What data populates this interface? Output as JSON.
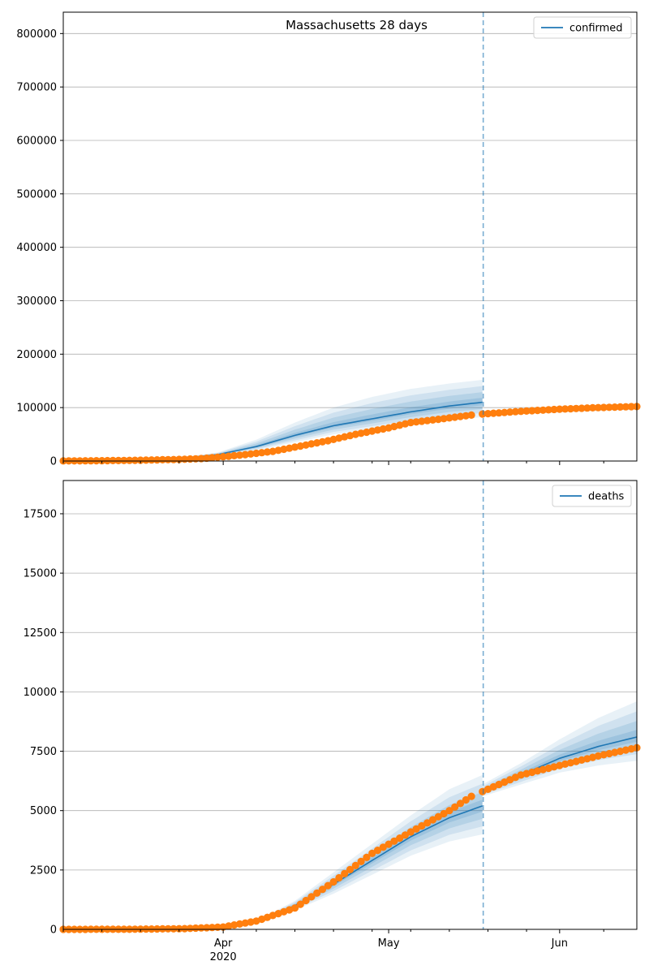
{
  "colors": {
    "model": "#1f77b4",
    "observed": "#ff7f0e",
    "grid": "#b0b0b0",
    "band": "#1f77b4"
  },
  "chart_data": [
    {
      "type": "line",
      "title": "Massachusetts 28 days",
      "legend": "confirmed",
      "legend_loc": "top-right",
      "ylim": [
        0,
        840000
      ],
      "yticks": [
        0,
        100000,
        200000,
        300000,
        400000,
        500000,
        600000,
        700000,
        800000
      ],
      "grid": true,
      "xaxis": {
        "type": "date",
        "range": [
          "2020-03-03",
          "2020-06-15"
        ],
        "major_ticks": [
          {
            "date": "2020-04-01",
            "label": "Apr",
            "sublabel": "2020"
          },
          {
            "date": "2020-05-01",
            "label": "May",
            "sublabel": ""
          },
          {
            "date": "2020-06-01",
            "label": "Jun",
            "sublabel": ""
          }
        ],
        "tick_labels_visible": false,
        "cutoff_date": "2020-05-18"
      },
      "model_fit": {
        "x": [
          "2020-03-03",
          "2020-03-10",
          "2020-03-17",
          "2020-03-24",
          "2020-03-31",
          "2020-04-07",
          "2020-04-14",
          "2020-04-21",
          "2020-04-28",
          "2020-05-05",
          "2020-05-12",
          "2020-05-18"
        ],
        "y": [
          200,
          500,
          1500,
          4500,
          12000,
          27000,
          48000,
          66000,
          79000,
          92000,
          103000,
          110000
        ],
        "lower": [
          200,
          500,
          1300,
          4000,
          10000,
          20000,
          35000,
          50000,
          60000,
          70000,
          78000,
          82000
        ],
        "upper": [
          200,
          500,
          1800,
          6000,
          16000,
          40000,
          72000,
          100000,
          120000,
          135000,
          145000,
          152000
        ]
      },
      "model_forecast": {
        "x": [
          "2020-05-18",
          "2020-05-25",
          "2020-06-01",
          "2020-06-08",
          "2020-06-15"
        ],
        "y": [
          89000,
          92000,
          96000,
          99000,
          102000
        ],
        "lower": [
          85000,
          88000,
          91000,
          94000,
          96000
        ],
        "upper": [
          93000,
          97000,
          101000,
          105000,
          108000
        ]
      },
      "observed_fit": {
        "x": [
          "2020-03-03",
          "2020-03-10",
          "2020-03-17",
          "2020-03-24",
          "2020-03-28",
          "2020-04-01",
          "2020-04-05",
          "2020-04-10",
          "2020-04-15",
          "2020-04-20",
          "2020-04-25",
          "2020-05-01",
          "2020-05-05",
          "2020-05-10",
          "2020-05-16"
        ],
        "y": [
          200,
          600,
          1500,
          3000,
          4500,
          8000,
          12000,
          18000,
          28000,
          38000,
          50000,
          62000,
          72000,
          78000,
          86000
        ]
      },
      "observed_forecast": {
        "x": [
          "2020-05-18",
          "2020-05-25",
          "2020-06-01",
          "2020-06-08",
          "2020-06-15"
        ],
        "y": [
          88000,
          93000,
          97000,
          100000,
          102000
        ]
      }
    },
    {
      "type": "line",
      "title": "",
      "legend": "deaths",
      "legend_loc": "top-right",
      "ylim": [
        0,
        18900
      ],
      "yticks": [
        0,
        2500,
        5000,
        7500,
        10000,
        12500,
        15000,
        17500
      ],
      "grid": true,
      "xaxis": {
        "type": "date",
        "range": [
          "2020-03-03",
          "2020-06-15"
        ],
        "major_ticks": [
          {
            "date": "2020-04-01",
            "label": "Apr",
            "sublabel": "2020"
          },
          {
            "date": "2020-05-01",
            "label": "May",
            "sublabel": ""
          },
          {
            "date": "2020-06-01",
            "label": "Jun",
            "sublabel": ""
          }
        ],
        "tick_labels_visible": true,
        "cutoff_date": "2020-05-18"
      },
      "model_fit": {
        "x": [
          "2020-03-03",
          "2020-03-15",
          "2020-03-25",
          "2020-04-01",
          "2020-04-07",
          "2020-04-14",
          "2020-04-21",
          "2020-04-28",
          "2020-05-05",
          "2020-05-12",
          "2020-05-18"
        ],
        "y": [
          0,
          5,
          20,
          100,
          300,
          1000,
          1900,
          2900,
          3900,
          4700,
          5200
        ],
        "lower": [
          0,
          3,
          15,
          80,
          240,
          800,
          1500,
          2300,
          3100,
          3700,
          4000
        ],
        "upper": [
          0,
          8,
          25,
          120,
          360,
          1200,
          2400,
          3600,
          4800,
          5900,
          6500
        ]
      },
      "model_forecast": {
        "x": [
          "2020-05-18",
          "2020-05-25",
          "2020-06-01",
          "2020-06-08",
          "2020-06-15"
        ],
        "y": [
          5800,
          6500,
          7200,
          7700,
          8100
        ],
        "lower": [
          5600,
          6100,
          6600,
          6900,
          7100
        ],
        "upper": [
          6100,
          7000,
          8000,
          8900,
          9600
        ]
      },
      "observed_fit": {
        "x": [
          "2020-03-03",
          "2020-03-15",
          "2020-03-25",
          "2020-04-01",
          "2020-04-07",
          "2020-04-14",
          "2020-04-21",
          "2020-04-28",
          "2020-05-05",
          "2020-05-12",
          "2020-05-16"
        ],
        "y": [
          0,
          5,
          30,
          100,
          350,
          900,
          2000,
          3200,
          4100,
          5000,
          5600
        ]
      },
      "observed_forecast": {
        "x": [
          "2020-05-18",
          "2020-05-25",
          "2020-06-01",
          "2020-06-08",
          "2020-06-15"
        ],
        "y": [
          5800,
          6500,
          6900,
          7300,
          7650
        ]
      }
    }
  ]
}
